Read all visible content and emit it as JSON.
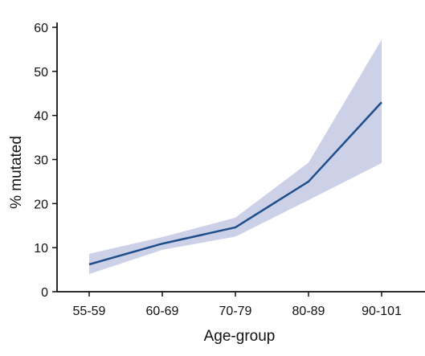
{
  "chart_data": {
    "type": "line",
    "title": "",
    "xlabel": "Age-group",
    "ylabel": "% mutated",
    "categories": [
      "55-59",
      "60-69",
      "70-79",
      "80-89",
      "90-101"
    ],
    "series": [
      {
        "values": [
          6.2,
          10.9,
          14.6,
          25.0,
          43.0
        ],
        "lower": [
          4.0,
          9.5,
          12.5,
          20.8,
          29.2
        ],
        "upper": [
          8.6,
          12.4,
          16.8,
          29.3,
          57.2
        ]
      }
    ],
    "ylim": [
      0,
      60
    ],
    "yticks": [
      0,
      10,
      20,
      30,
      40,
      50,
      60
    ],
    "grid": false,
    "legend": "none",
    "colors": {
      "line": "#1f4e8a",
      "band": "#ccd1e7",
      "axis": "#111111"
    }
  }
}
